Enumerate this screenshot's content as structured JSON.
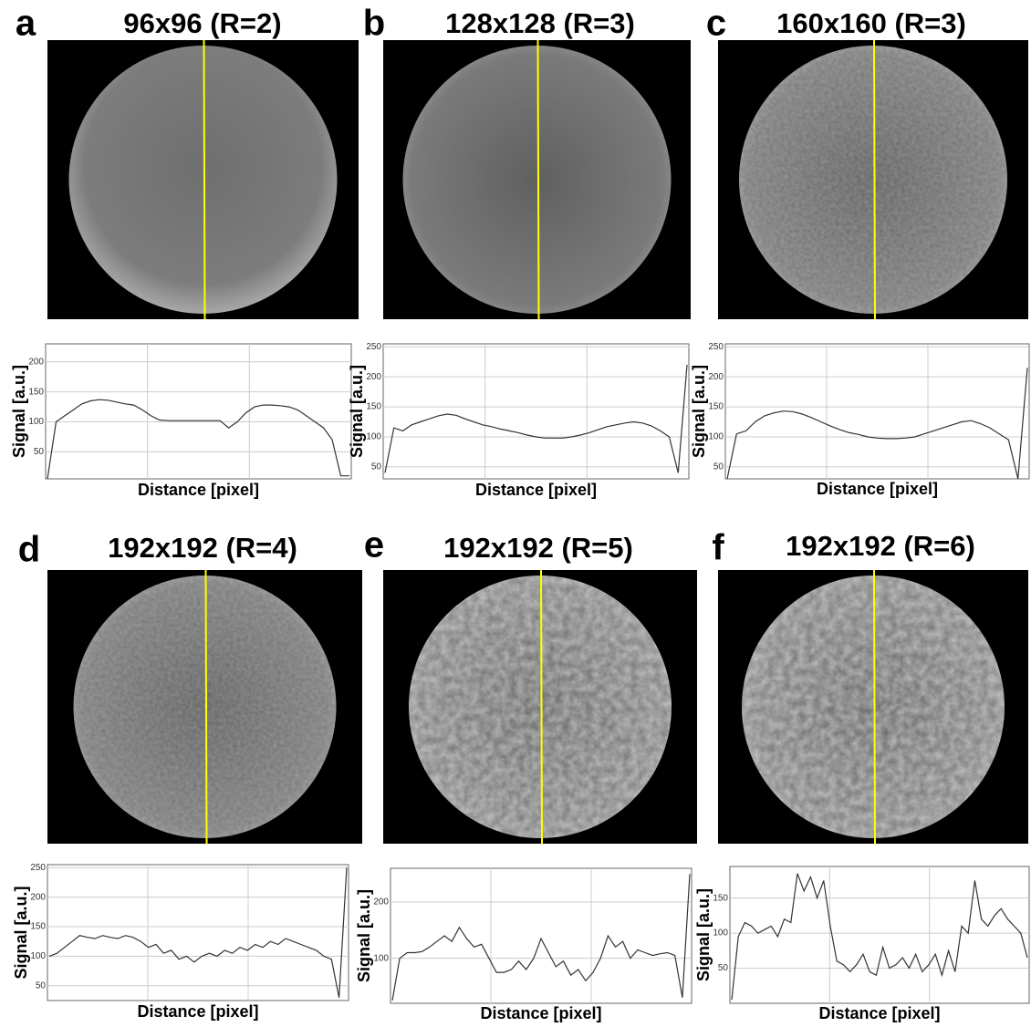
{
  "chart_data": [
    {
      "type": "line",
      "panel": "a",
      "title": "96x96 (R=2)",
      "xlabel": "Distance [pixel]",
      "ylabel": "Signal [a.u.]",
      "color": "#333333",
      "grid": true,
      "ylim": [
        5,
        230
      ],
      "yticks": [
        50,
        100,
        150,
        200
      ],
      "values": [
        5,
        100,
        110,
        120,
        130,
        135,
        137,
        136,
        133,
        130,
        128,
        120,
        110,
        103,
        102,
        102,
        102,
        102,
        102,
        102,
        102,
        90,
        100,
        115,
        125,
        128,
        128,
        127,
        125,
        120,
        110,
        100,
        90,
        70,
        10,
        10
      ]
    },
    {
      "type": "line",
      "panel": "b",
      "title": "128x128 (R=3)",
      "xlabel": "Distance [pixel]",
      "ylabel": "Signal [a.u.]",
      "color": "#333333",
      "grid": true,
      "ylim": [
        30,
        255
      ],
      "yticks": [
        50,
        100,
        150,
        200,
        250
      ],
      "values": [
        40,
        115,
        110,
        120,
        125,
        130,
        135,
        138,
        136,
        130,
        125,
        120,
        117,
        113,
        110,
        107,
        103,
        100,
        98,
        98,
        98,
        100,
        103,
        107,
        112,
        117,
        120,
        123,
        125,
        123,
        118,
        110,
        100,
        40,
        220
      ]
    },
    {
      "type": "line",
      "panel": "c",
      "title": "160x160 (R=3)",
      "xlabel": "Distance [pixel]",
      "ylabel": "Signal [a.u.]",
      "color": "#333333",
      "grid": true,
      "ylim": [
        30,
        255
      ],
      "yticks": [
        50,
        100,
        150,
        200,
        250
      ],
      "values": [
        30,
        105,
        110,
        125,
        135,
        140,
        143,
        142,
        138,
        132,
        125,
        118,
        112,
        107,
        104,
        100,
        98,
        97,
        97,
        98,
        100,
        105,
        110,
        115,
        120,
        125,
        127,
        122,
        115,
        105,
        95,
        30,
        215
      ]
    },
    {
      "type": "line",
      "panel": "d",
      "title": "192x192 (R=4)",
      "xlabel": "Distance [pixel]",
      "ylabel": "Signal [a.u.]",
      "color": "#333333",
      "grid": true,
      "ylim": [
        25,
        255
      ],
      "yticks": [
        50,
        100,
        150,
        200,
        250
      ],
      "values": [
        100,
        105,
        115,
        125,
        135,
        132,
        130,
        135,
        132,
        130,
        135,
        132,
        125,
        115,
        120,
        105,
        110,
        95,
        100,
        90,
        100,
        105,
        100,
        110,
        105,
        115,
        110,
        120,
        115,
        125,
        120,
        130,
        125,
        120,
        115,
        110,
        100,
        95,
        30,
        250
      ]
    },
    {
      "type": "line",
      "panel": "e",
      "title": "192x192 (R=5)",
      "xlabel": "Distance [pixel]",
      "ylabel": "Signal [a.u.]",
      "color": "#333333",
      "grid": true,
      "ylim": [
        20,
        260
      ],
      "yticks": [
        100,
        200
      ],
      "values": [
        25,
        100,
        110,
        110,
        112,
        120,
        130,
        140,
        130,
        155,
        135,
        120,
        125,
        100,
        75,
        75,
        80,
        95,
        80,
        100,
        135,
        110,
        85,
        95,
        70,
        80,
        60,
        75,
        100,
        140,
        120,
        130,
        100,
        115,
        110,
        105,
        108,
        110,
        105,
        30,
        250
      ]
    },
    {
      "type": "line",
      "panel": "f",
      "title": "192x192 (R=6)",
      "xlabel": "Distance [pixel]",
      "ylabel": "Signal [a.u.]",
      "color": "#333333",
      "grid": true,
      "ylim": [
        0,
        195
      ],
      "yticks": [
        50,
        100,
        150
      ],
      "values": [
        5,
        95,
        115,
        110,
        100,
        105,
        110,
        95,
        120,
        115,
        185,
        160,
        180,
        150,
        175,
        110,
        60,
        55,
        45,
        55,
        70,
        45,
        40,
        80,
        50,
        55,
        65,
        50,
        70,
        45,
        55,
        70,
        40,
        75,
        45,
        110,
        100,
        175,
        120,
        110,
        125,
        135,
        120,
        110,
        100,
        65
      ]
    }
  ]
}
